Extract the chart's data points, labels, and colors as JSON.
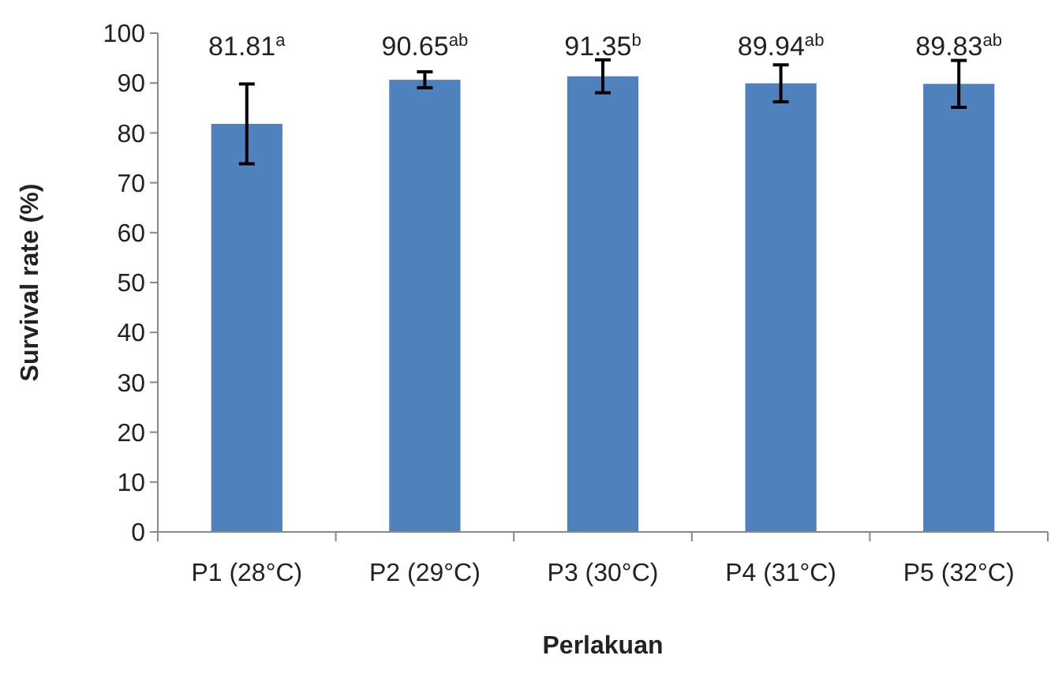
{
  "chart_data": {
    "type": "bar",
    "xlabel": "Perlakuan",
    "ylabel": "Survival rate (%)",
    "categories": [
      "P1  (28°C)",
      "P2  (29°C)",
      "P3  (30°C)",
      "P4  (31°C)",
      "P5  (32°C)"
    ],
    "values": [
      81.81,
      90.65,
      91.35,
      89.94,
      89.83
    ],
    "errors": [
      8,
      1.6,
      3.3,
      3.7,
      4.7
    ],
    "value_labels": [
      "81.81$^{a}$",
      "90.65$^{ab}$",
      "91.35$^{b}$",
      "89.94$^{ab}$",
      "89.83$^{ab}$"
    ],
    "color": "#4f81bd",
    "ylim": [
      0,
      100
    ],
    "yticks": [
      0,
      10,
      20,
      30,
      40,
      50,
      60,
      70,
      80,
      90,
      100
    ],
    "grid": false
  }
}
